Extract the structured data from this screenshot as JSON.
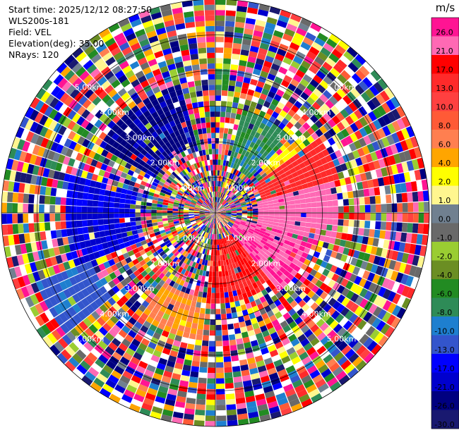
{
  "header": {
    "start_time": "Start time: 2025/12/12 08:27:50",
    "instrument": "WLS200s-181",
    "field": "Field: VEL",
    "elevation": "Elevation(deg): 35.00",
    "nrays": "NRays: 120"
  },
  "chart_data": {
    "type": "heatmap",
    "projection": "polar-ppi",
    "field": "VEL",
    "units": "m/s",
    "n_rays": 120,
    "elevation_deg": 35.0,
    "range_rings_km": [
      1.0,
      2.0,
      3.0,
      4.0,
      5.0
    ],
    "range_ring_labels": [
      "1.00km",
      "2.00km",
      "3.00km",
      "4.00km",
      "5.00km"
    ],
    "max_range_km": 6.0,
    "colorbar": {
      "unit": "m/s",
      "tick_labels": [
        "26.0",
        "21.0",
        "17.0",
        "13.0",
        "10.0",
        "8.0",
        "6.0",
        "4.0",
        "2.0",
        "1.0",
        "0.0",
        "-1.0",
        "-2.0",
        "-4.0",
        "-6.0",
        "-8.0",
        "-10.0",
        "-13.0",
        "-17.0",
        "-21.0",
        "-26.0",
        "-30.0"
      ],
      "colors": [
        "#ff1493",
        "#ff69b4",
        "#ff0000",
        "#ff2a2a",
        "#ff4040",
        "#ff5a36",
        "#ff7f50",
        "#ffa500",
        "#ffff00",
        "#fff68f",
        "#708090",
        "#696969",
        "#9acd32",
        "#6b8e23",
        "#228b22",
        "#2e8b57",
        "#1e7fcf",
        "#3355cc",
        "#0000ff",
        "#0000cd",
        "#000080",
        "#191970"
      ]
    },
    "coherent_regions": [
      {
        "az_from": 55,
        "az_to": 75,
        "r_from": 1.4,
        "r_to": 3.6,
        "value": 15
      },
      {
        "az_from": 75,
        "az_to": 105,
        "r_from": 1.2,
        "r_to": 3.4,
        "value": 24
      },
      {
        "az_from": 105,
        "az_to": 140,
        "r_from": 0.6,
        "r_to": 2.8,
        "value": 26
      },
      {
        "az_from": 140,
        "az_to": 185,
        "r_from": 0.8,
        "r_to": 2.6,
        "value": 17
      },
      {
        "az_from": 185,
        "az_to": 215,
        "r_from": 2.4,
        "r_to": 3.6,
        "value": 6
      },
      {
        "az_from": 230,
        "az_to": 250,
        "r_from": 3.8,
        "r_to": 5.4,
        "value": -11
      },
      {
        "az_from": 250,
        "az_to": 285,
        "r_from": 2.2,
        "r_to": 4.2,
        "value": -17
      },
      {
        "az_from": 300,
        "az_to": 345,
        "r_from": 2.0,
        "r_to": 3.8,
        "value": -22
      },
      {
        "az_from": 15,
        "az_to": 45,
        "r_from": 1.4,
        "r_to": 3.0,
        "value": -7
      },
      {
        "az_from": 40,
        "az_to": 60,
        "r_from": 1.8,
        "r_to": 3.2,
        "value": 4
      }
    ]
  }
}
